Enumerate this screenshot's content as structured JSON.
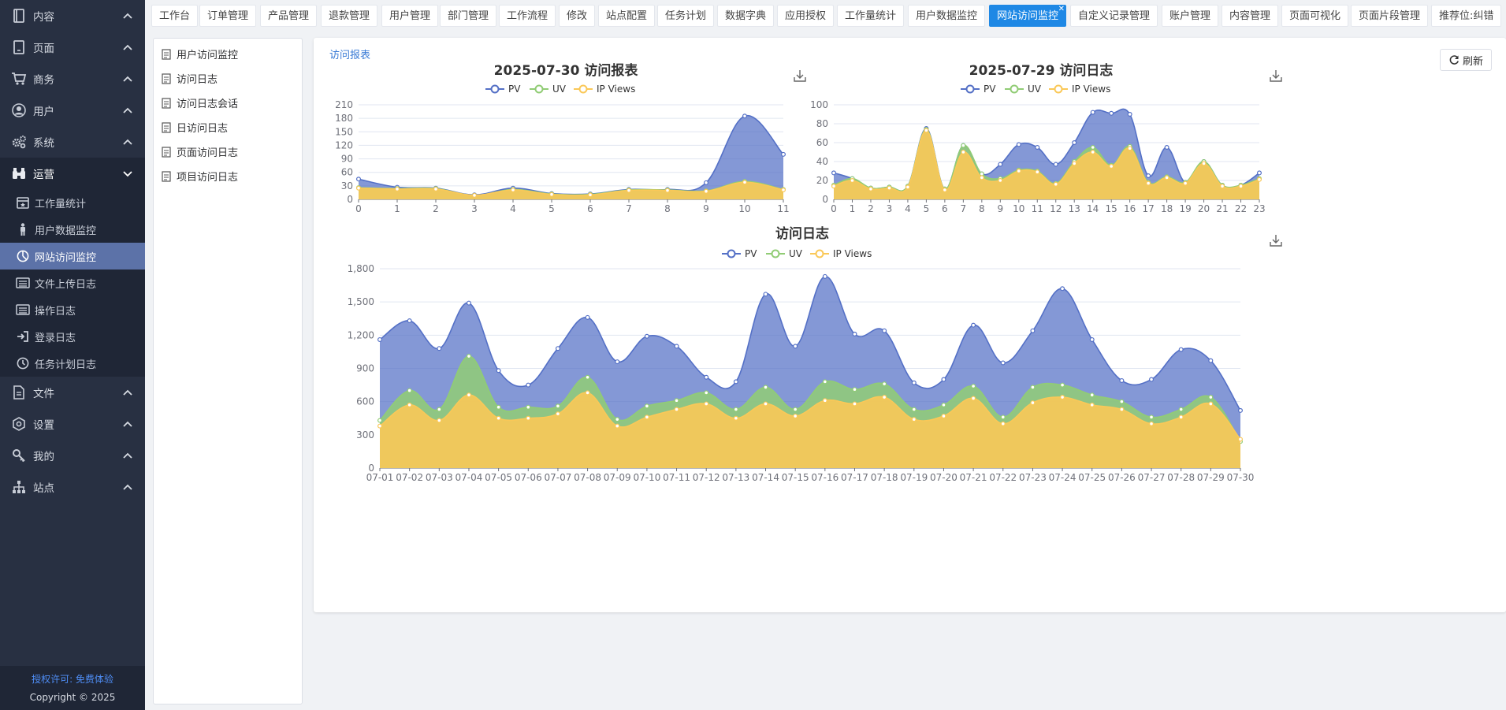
{
  "sidebar": {
    "items": [
      {
        "label": "内容",
        "icon": "book-icon"
      },
      {
        "label": "页面",
        "icon": "page-icon"
      },
      {
        "label": "商务",
        "icon": "cart-icon"
      },
      {
        "label": "用户",
        "icon": "user-circle-icon"
      },
      {
        "label": "系统",
        "icon": "gears-icon"
      },
      {
        "label": "运营",
        "icon": "binoculars-icon"
      }
    ],
    "sub_items": [
      {
        "label": "工作量统计",
        "icon": "calendar-icon"
      },
      {
        "label": "用户数据监控",
        "icon": "person-icon"
      },
      {
        "label": "网站访问监控",
        "icon": "pie-chart-icon"
      },
      {
        "label": "文件上传日志",
        "icon": "list-icon"
      },
      {
        "label": "操作日志",
        "icon": "list-icon"
      },
      {
        "label": "登录日志",
        "icon": "login-icon"
      },
      {
        "label": "任务计划日志",
        "icon": "clock-icon"
      }
    ],
    "items_after": [
      {
        "label": "文件",
        "icon": "file-icon"
      },
      {
        "label": "设置",
        "icon": "hexagon-icon"
      },
      {
        "label": "我的",
        "icon": "key-icon"
      },
      {
        "label": "站点",
        "icon": "sitemap-icon"
      }
    ],
    "license": "授权许可: 免费体验",
    "copyright": "Copyright © 2025"
  },
  "tabs": [
    "工作台",
    "订单管理",
    "产品管理",
    "退款管理",
    "用户管理",
    "部门管理",
    "工作流程",
    "修改",
    "站点配置",
    "任务计划",
    "数据字典",
    "应用授权",
    "工作量统计",
    "用户数据监控",
    "网站访问监控",
    "自定义记录管理",
    "账户管理",
    "内容管理",
    "页面可视化",
    "页面片段管理",
    "推荐位:纠错"
  ],
  "active_tab": "网站访问监控",
  "tree": [
    "用户访问监控",
    "访问日志",
    "访问日志会话",
    "日访问日志",
    "页面访问日志",
    "项目访问日志"
  ],
  "main": {
    "breadcrumb": "访问报表",
    "refresh_label": "刷新"
  },
  "colors": {
    "pv": "#5470c6",
    "uv": "#91cc75",
    "ip": "#fac858"
  },
  "chart_data": [
    {
      "type": "area",
      "title": "2025-07-30 访问报表",
      "legend": [
        "PV",
        "UV",
        "IP Views"
      ],
      "legend_position": "top-center",
      "x": [
        "0",
        "1",
        "2",
        "3",
        "4",
        "5",
        "6",
        "7",
        "8",
        "9",
        "10",
        "11"
      ],
      "ylim": [
        0,
        210
      ],
      "yticks": [
        0,
        30,
        60,
        90,
        120,
        150,
        180,
        210
      ],
      "series": [
        {
          "name": "PV",
          "values": [
            45,
            27,
            25,
            10,
            25,
            13,
            12,
            22,
            22,
            37,
            185,
            100
          ]
        },
        {
          "name": "UV",
          "values": [
            26,
            24,
            24,
            9,
            22,
            12,
            11,
            21,
            21,
            19,
            40,
            22
          ]
        },
        {
          "name": "IP Views",
          "values": [
            25,
            23,
            23,
            9,
            21,
            11,
            10,
            20,
            20,
            18,
            38,
            21
          ]
        }
      ]
    },
    {
      "type": "area",
      "title": "2025-07-29 访问日志",
      "legend": [
        "PV",
        "UV",
        "IP Views"
      ],
      "legend_position": "top-center",
      "x": [
        "0",
        "1",
        "2",
        "3",
        "4",
        "5",
        "6",
        "7",
        "8",
        "9",
        "10",
        "11",
        "12",
        "13",
        "14",
        "15",
        "16",
        "17",
        "18",
        "19",
        "20",
        "21",
        "22",
        "23"
      ],
      "ylim": [
        0,
        100
      ],
      "yticks": [
        0,
        20,
        40,
        60,
        80,
        100
      ],
      "series": [
        {
          "name": "PV",
          "values": [
            28,
            22,
            12,
            13,
            14,
            75,
            11,
            57,
            27,
            37,
            58,
            55,
            37,
            60,
            92,
            91,
            90,
            25,
            55,
            18,
            40,
            15,
            15,
            28
          ]
        },
        {
          "name": "UV",
          "values": [
            15,
            22,
            12,
            13,
            14,
            74,
            11,
            57,
            27,
            22,
            31,
            30,
            17,
            40,
            55,
            36,
            56,
            18,
            24,
            18,
            40,
            15,
            15,
            22
          ]
        },
        {
          "name": "IP Views",
          "values": [
            14,
            20,
            11,
            12,
            13,
            73,
            10,
            50,
            23,
            20,
            30,
            29,
            16,
            38,
            50,
            35,
            54,
            17,
            23,
            17,
            38,
            14,
            14,
            21
          ]
        }
      ]
    },
    {
      "type": "area",
      "title": "访问日志",
      "legend": [
        "PV",
        "UV",
        "IP Views"
      ],
      "legend_position": "top-center",
      "x": [
        "07-01",
        "07-02",
        "07-03",
        "07-04",
        "07-05",
        "07-06",
        "07-07",
        "07-08",
        "07-09",
        "07-10",
        "07-11",
        "07-12",
        "07-13",
        "07-14",
        "07-15",
        "07-16",
        "07-17",
        "07-18",
        "07-19",
        "07-20",
        "07-21",
        "07-22",
        "07-23",
        "07-24",
        "07-25",
        "07-26",
        "07-27",
        "07-28",
        "07-29",
        "07-30"
      ],
      "ylim": [
        0,
        1800
      ],
      "yticks": [
        0,
        300,
        600,
        900,
        1200,
        1500,
        1800
      ],
      "ytick_labels": [
        "0",
        "300",
        "600",
        "900",
        "1,200",
        "1,500",
        "1,800"
      ],
      "series": [
        {
          "name": "PV",
          "values": [
            1160,
            1330,
            1080,
            1490,
            880,
            750,
            1080,
            1360,
            960,
            1190,
            1100,
            820,
            780,
            1570,
            1100,
            1730,
            1210,
            1240,
            770,
            800,
            1290,
            950,
            1240,
            1620,
            1160,
            790,
            800,
            1070,
            970,
            520
          ]
        },
        {
          "name": "UV",
          "values": [
            430,
            700,
            530,
            1010,
            550,
            550,
            560,
            820,
            440,
            560,
            610,
            680,
            530,
            730,
            530,
            780,
            710,
            760,
            530,
            570,
            740,
            460,
            730,
            750,
            660,
            600,
            460,
            530,
            640,
            240
          ]
        },
        {
          "name": "IP Views",
          "values": [
            380,
            570,
            430,
            660,
            450,
            450,
            490,
            680,
            380,
            460,
            530,
            580,
            450,
            580,
            470,
            610,
            580,
            640,
            440,
            470,
            630,
            400,
            590,
            640,
            570,
            530,
            400,
            460,
            580,
            260
          ]
        }
      ]
    }
  ]
}
